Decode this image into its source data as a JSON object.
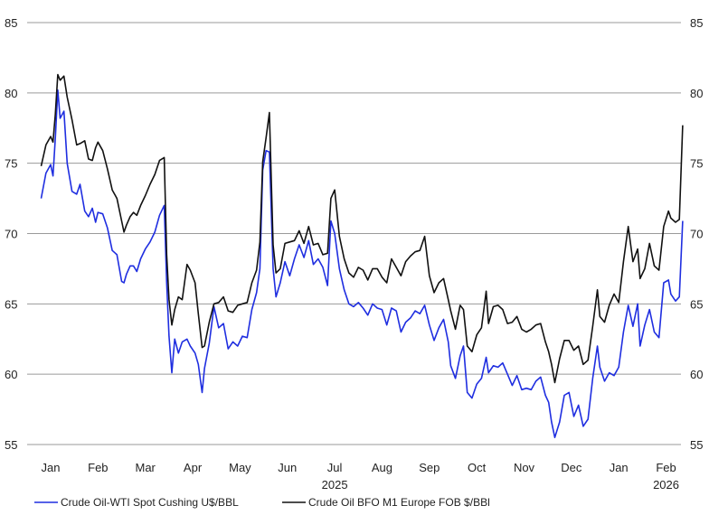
{
  "chart_data": {
    "type": "line",
    "y_range": [
      55,
      85
    ],
    "y_ticks": [
      "55",
      "60",
      "65",
      "70",
      "75",
      "80",
      "85"
    ],
    "x_ticks": [
      "Jan",
      "Feb",
      "Mar",
      "Apr",
      "May",
      "Jun",
      "Jul",
      "Aug",
      "Sep",
      "Oct",
      "Nov",
      "Dec",
      "Jan",
      "Feb"
    ],
    "year_labels": [
      {
        "label": "2025",
        "month_index": 6
      },
      {
        "label": "2026",
        "month_index": 13
      }
    ],
    "grid": true,
    "legend_position": "bottom",
    "series": [
      {
        "name": "Crude Oil-WTI Spot Cushing U$/BBL",
        "color": "#1f2ee0",
        "points": [
          [
            -0.2,
            72.5
          ],
          [
            -0.1,
            74.3
          ],
          [
            0.0,
            74.9
          ],
          [
            0.05,
            74.1
          ],
          [
            0.1,
            76.8
          ],
          [
            0.15,
            80.2
          ],
          [
            0.2,
            78.2
          ],
          [
            0.28,
            78.7
          ],
          [
            0.35,
            75.0
          ],
          [
            0.45,
            73.0
          ],
          [
            0.55,
            72.8
          ],
          [
            0.62,
            73.5
          ],
          [
            0.72,
            71.6
          ],
          [
            0.8,
            71.2
          ],
          [
            0.88,
            71.8
          ],
          [
            0.95,
            70.8
          ],
          [
            1.0,
            71.5
          ],
          [
            1.1,
            71.4
          ],
          [
            1.2,
            70.4
          ],
          [
            1.3,
            68.8
          ],
          [
            1.4,
            68.5
          ],
          [
            1.5,
            66.6
          ],
          [
            1.55,
            66.5
          ],
          [
            1.6,
            67.1
          ],
          [
            1.68,
            67.7
          ],
          [
            1.75,
            67.7
          ],
          [
            1.82,
            67.3
          ],
          [
            1.9,
            68.2
          ],
          [
            2.0,
            68.9
          ],
          [
            2.1,
            69.4
          ],
          [
            2.2,
            70.1
          ],
          [
            2.3,
            71.3
          ],
          [
            2.4,
            72.0
          ],
          [
            2.45,
            66.5
          ],
          [
            2.5,
            62.7
          ],
          [
            2.56,
            60.1
          ],
          [
            2.62,
            62.5
          ],
          [
            2.7,
            61.5
          ],
          [
            2.78,
            62.3
          ],
          [
            2.88,
            62.5
          ],
          [
            2.95,
            62.0
          ],
          [
            3.05,
            61.5
          ],
          [
            3.12,
            60.7
          ],
          [
            3.2,
            58.7
          ],
          [
            3.25,
            60.4
          ],
          [
            3.35,
            62.2
          ],
          [
            3.45,
            64.8
          ],
          [
            3.55,
            63.3
          ],
          [
            3.65,
            63.6
          ],
          [
            3.75,
            61.8
          ],
          [
            3.85,
            62.3
          ],
          [
            3.95,
            62.0
          ],
          [
            4.05,
            62.7
          ],
          [
            4.15,
            62.6
          ],
          [
            4.25,
            64.6
          ],
          [
            4.35,
            65.8
          ],
          [
            4.42,
            67.5
          ],
          [
            4.48,
            74.5
          ],
          [
            4.55,
            75.9
          ],
          [
            4.62,
            75.8
          ],
          [
            4.7,
            67.5
          ],
          [
            4.76,
            65.5
          ],
          [
            4.85,
            66.5
          ],
          [
            4.95,
            68.0
          ],
          [
            5.05,
            67.0
          ],
          [
            5.15,
            68.2
          ],
          [
            5.25,
            69.2
          ],
          [
            5.35,
            68.3
          ],
          [
            5.45,
            69.5
          ],
          [
            5.55,
            67.8
          ],
          [
            5.65,
            68.2
          ],
          [
            5.75,
            67.6
          ],
          [
            5.85,
            66.3
          ],
          [
            5.92,
            70.9
          ],
          [
            6.0,
            70.0
          ],
          [
            6.1,
            67.5
          ],
          [
            6.2,
            66.0
          ],
          [
            6.3,
            65.0
          ],
          [
            6.4,
            64.8
          ],
          [
            6.5,
            65.1
          ],
          [
            6.6,
            64.7
          ],
          [
            6.7,
            64.2
          ],
          [
            6.8,
            65.0
          ],
          [
            6.9,
            64.7
          ],
          [
            7.0,
            64.6
          ],
          [
            7.1,
            63.5
          ],
          [
            7.2,
            64.7
          ],
          [
            7.3,
            64.5
          ],
          [
            7.4,
            63.0
          ],
          [
            7.5,
            63.7
          ],
          [
            7.6,
            64.0
          ],
          [
            7.7,
            64.5
          ],
          [
            7.8,
            64.3
          ],
          [
            7.9,
            64.9
          ],
          [
            8.0,
            63.5
          ],
          [
            8.1,
            62.4
          ],
          [
            8.2,
            63.3
          ],
          [
            8.3,
            63.9
          ],
          [
            8.4,
            62.3
          ],
          [
            8.45,
            60.6
          ],
          [
            8.55,
            59.7
          ],
          [
            8.65,
            61.3
          ],
          [
            8.72,
            62.0
          ],
          [
            8.8,
            58.7
          ],
          [
            8.9,
            58.3
          ],
          [
            9.0,
            59.3
          ],
          [
            9.1,
            59.7
          ],
          [
            9.2,
            61.2
          ],
          [
            9.25,
            60.1
          ],
          [
            9.35,
            60.6
          ],
          [
            9.45,
            60.5
          ],
          [
            9.55,
            60.8
          ],
          [
            9.65,
            60.0
          ],
          [
            9.75,
            59.2
          ],
          [
            9.85,
            59.9
          ],
          [
            9.95,
            58.9
          ],
          [
            10.05,
            59.0
          ],
          [
            10.15,
            58.9
          ],
          [
            10.25,
            59.5
          ],
          [
            10.35,
            59.8
          ],
          [
            10.45,
            58.5
          ],
          [
            10.52,
            58.0
          ],
          [
            10.58,
            56.6
          ],
          [
            10.65,
            55.5
          ],
          [
            10.75,
            56.6
          ],
          [
            10.85,
            58.5
          ],
          [
            10.95,
            58.7
          ],
          [
            11.05,
            57.0
          ],
          [
            11.15,
            57.8
          ],
          [
            11.25,
            56.3
          ],
          [
            11.35,
            56.8
          ],
          [
            11.45,
            59.7
          ],
          [
            11.55,
            62.0
          ],
          [
            11.6,
            60.5
          ],
          [
            11.7,
            59.5
          ],
          [
            11.8,
            60.1
          ],
          [
            11.9,
            59.9
          ],
          [
            12.0,
            60.5
          ],
          [
            12.1,
            63.0
          ],
          [
            12.2,
            64.9
          ],
          [
            12.3,
            63.4
          ],
          [
            12.4,
            65.0
          ],
          [
            12.45,
            62.0
          ],
          [
            12.55,
            63.5
          ],
          [
            12.65,
            64.6
          ],
          [
            12.75,
            63.0
          ],
          [
            12.85,
            62.6
          ],
          [
            12.95,
            66.5
          ],
          [
            13.05,
            66.7
          ],
          [
            13.1,
            65.7
          ],
          [
            13.2,
            65.2
          ],
          [
            13.28,
            65.5
          ],
          [
            13.35,
            70.9
          ]
        ]
      },
      {
        "name": "Crude Oil BFO M1 Europe FOB $/BBl",
        "color": "#111111",
        "points": [
          [
            -0.2,
            74.8
          ],
          [
            -0.1,
            76.3
          ],
          [
            0.0,
            76.9
          ],
          [
            0.05,
            76.5
          ],
          [
            0.1,
            78.5
          ],
          [
            0.15,
            81.3
          ],
          [
            0.2,
            80.9
          ],
          [
            0.28,
            81.2
          ],
          [
            0.35,
            79.7
          ],
          [
            0.45,
            78.1
          ],
          [
            0.55,
            76.3
          ],
          [
            0.62,
            76.4
          ],
          [
            0.72,
            76.6
          ],
          [
            0.8,
            75.3
          ],
          [
            0.88,
            75.2
          ],
          [
            0.95,
            76.1
          ],
          [
            1.0,
            76.5
          ],
          [
            1.1,
            75.9
          ],
          [
            1.2,
            74.6
          ],
          [
            1.3,
            73.1
          ],
          [
            1.4,
            72.5
          ],
          [
            1.5,
            70.9
          ],
          [
            1.55,
            70.1
          ],
          [
            1.6,
            70.6
          ],
          [
            1.68,
            71.2
          ],
          [
            1.75,
            71.5
          ],
          [
            1.82,
            71.3
          ],
          [
            1.9,
            72.0
          ],
          [
            2.0,
            72.7
          ],
          [
            2.1,
            73.5
          ],
          [
            2.2,
            74.2
          ],
          [
            2.3,
            75.2
          ],
          [
            2.4,
            75.4
          ],
          [
            2.45,
            68.5
          ],
          [
            2.5,
            65.3
          ],
          [
            2.56,
            63.5
          ],
          [
            2.62,
            64.6
          ],
          [
            2.7,
            65.5
          ],
          [
            2.78,
            65.3
          ],
          [
            2.88,
            67.8
          ],
          [
            2.95,
            67.4
          ],
          [
            3.05,
            66.5
          ],
          [
            3.12,
            64.3
          ],
          [
            3.2,
            61.9
          ],
          [
            3.25,
            62.0
          ],
          [
            3.35,
            63.7
          ],
          [
            3.45,
            65.0
          ],
          [
            3.55,
            65.1
          ],
          [
            3.65,
            65.5
          ],
          [
            3.75,
            64.5
          ],
          [
            3.85,
            64.4
          ],
          [
            3.95,
            64.9
          ],
          [
            4.05,
            65.0
          ],
          [
            4.15,
            65.1
          ],
          [
            4.25,
            66.5
          ],
          [
            4.35,
            67.4
          ],
          [
            4.42,
            69.4
          ],
          [
            4.48,
            75.1
          ],
          [
            4.55,
            76.8
          ],
          [
            4.62,
            78.6
          ],
          [
            4.7,
            69.2
          ],
          [
            4.76,
            67.2
          ],
          [
            4.85,
            67.5
          ],
          [
            4.95,
            69.3
          ],
          [
            5.05,
            69.4
          ],
          [
            5.15,
            69.5
          ],
          [
            5.25,
            70.2
          ],
          [
            5.35,
            69.3
          ],
          [
            5.45,
            70.5
          ],
          [
            5.55,
            69.2
          ],
          [
            5.65,
            69.3
          ],
          [
            5.75,
            68.5
          ],
          [
            5.85,
            68.6
          ],
          [
            5.92,
            72.5
          ],
          [
            6.0,
            73.1
          ],
          [
            6.1,
            69.8
          ],
          [
            6.2,
            68.2
          ],
          [
            6.3,
            67.2
          ],
          [
            6.4,
            66.9
          ],
          [
            6.5,
            67.6
          ],
          [
            6.6,
            67.4
          ],
          [
            6.7,
            66.7
          ],
          [
            6.8,
            67.5
          ],
          [
            6.9,
            67.5
          ],
          [
            7.0,
            66.9
          ],
          [
            7.1,
            66.5
          ],
          [
            7.2,
            68.2
          ],
          [
            7.3,
            67.6
          ],
          [
            7.4,
            67.0
          ],
          [
            7.5,
            68.0
          ],
          [
            7.6,
            68.4
          ],
          [
            7.7,
            68.7
          ],
          [
            7.8,
            68.8
          ],
          [
            7.9,
            69.8
          ],
          [
            8.0,
            67.0
          ],
          [
            8.1,
            65.8
          ],
          [
            8.2,
            66.5
          ],
          [
            8.3,
            66.8
          ],
          [
            8.4,
            65.3
          ],
          [
            8.45,
            64.5
          ],
          [
            8.55,
            63.2
          ],
          [
            8.65,
            64.9
          ],
          [
            8.72,
            64.6
          ],
          [
            8.8,
            62.0
          ],
          [
            8.9,
            61.6
          ],
          [
            9.0,
            62.8
          ],
          [
            9.1,
            63.3
          ],
          [
            9.2,
            65.9
          ],
          [
            9.25,
            63.6
          ],
          [
            9.35,
            64.8
          ],
          [
            9.45,
            64.9
          ],
          [
            9.55,
            64.6
          ],
          [
            9.65,
            63.6
          ],
          [
            9.75,
            63.7
          ],
          [
            9.85,
            64.1
          ],
          [
            9.95,
            63.2
          ],
          [
            10.05,
            63.0
          ],
          [
            10.15,
            63.2
          ],
          [
            10.25,
            63.5
          ],
          [
            10.35,
            63.6
          ],
          [
            10.45,
            62.3
          ],
          [
            10.52,
            61.6
          ],
          [
            10.58,
            60.7
          ],
          [
            10.65,
            59.4
          ],
          [
            10.75,
            61.1
          ],
          [
            10.85,
            62.4
          ],
          [
            10.95,
            62.4
          ],
          [
            11.05,
            61.7
          ],
          [
            11.15,
            62.0
          ],
          [
            11.25,
            60.7
          ],
          [
            11.35,
            61.0
          ],
          [
            11.45,
            63.4
          ],
          [
            11.55,
            66.0
          ],
          [
            11.6,
            64.1
          ],
          [
            11.7,
            63.7
          ],
          [
            11.8,
            64.9
          ],
          [
            11.9,
            65.7
          ],
          [
            12.0,
            65.1
          ],
          [
            12.1,
            68.0
          ],
          [
            12.2,
            70.5
          ],
          [
            12.3,
            68.0
          ],
          [
            12.4,
            68.9
          ],
          [
            12.45,
            66.8
          ],
          [
            12.55,
            67.5
          ],
          [
            12.65,
            69.3
          ],
          [
            12.75,
            67.7
          ],
          [
            12.85,
            67.4
          ],
          [
            12.95,
            70.5
          ],
          [
            13.05,
            71.6
          ],
          [
            13.1,
            71.1
          ],
          [
            13.2,
            70.8
          ],
          [
            13.28,
            71.0
          ],
          [
            13.35,
            77.7
          ]
        ]
      }
    ]
  }
}
